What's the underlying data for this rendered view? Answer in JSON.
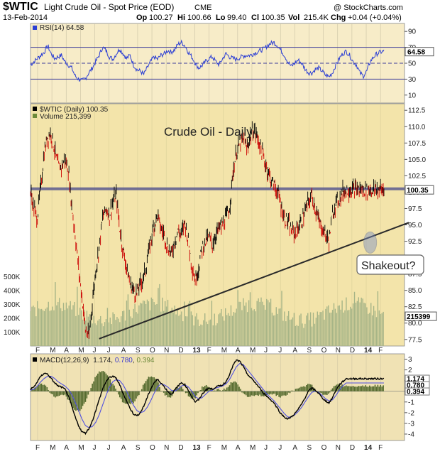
{
  "header": {
    "symbol": "$WTIC",
    "symbol_name": "Light Crude Oil - Spot Price (EOD)",
    "exchange": "CME",
    "watermark": "@ StockCharts.com",
    "date": "13-Feb-2014",
    "op_label": "Op",
    "op": "100.27",
    "hi_label": "Hi",
    "hi": "100.66",
    "lo_label": "Lo",
    "lo": "99.40",
    "cl_label": "Cl",
    "cl": "100.35",
    "vol_label": "Vol",
    "vol": "215.4K",
    "chg_label": "Chg",
    "chg": "+0.04 (+0.04%)"
  },
  "colors": {
    "panel_bg": "#f7ecc8",
    "price_bg": "#f3e4aa",
    "macd_bg": "#f0e2b4",
    "rsi_line": "#2b3ed4",
    "price_up": "#000000",
    "price_down": "#cc0000",
    "volume": "#a6b487",
    "macd_line": "#000000",
    "signal_line": "#5050e0",
    "histogram": "#556b2f",
    "resistance": "#5b5b90",
    "trendline": "#2a2a2a"
  },
  "months": [
    "F",
    "M",
    "A",
    "M",
    "J",
    "J",
    "A",
    "S",
    "O",
    "N",
    "D",
    "13",
    "F",
    "M",
    "A",
    "M",
    "J",
    "J",
    "A",
    "S",
    "O",
    "N",
    "D",
    "14",
    "F"
  ],
  "chart_data": [
    {
      "type": "line",
      "name": "RSI panel",
      "label": "RSI(14) 64.58",
      "last_value_tag": "64.58",
      "y_ticks": [
        90,
        70,
        50,
        30,
        10
      ],
      "reference_lines": [
        70,
        50,
        30
      ],
      "ylim": [
        0,
        100
      ],
      "x": [
        0,
        5,
        10,
        15,
        20,
        25,
        30,
        35,
        40,
        45,
        50,
        55,
        60,
        65,
        70,
        75,
        80,
        85,
        90,
        95,
        100,
        105,
        110,
        115,
        120,
        125,
        130,
        135,
        140,
        145,
        150,
        155,
        160,
        165,
        170,
        175,
        180,
        185,
        190,
        195,
        200,
        205,
        210,
        215,
        220,
        225,
        230,
        235,
        240,
        245,
        250,
        255,
        260,
        265,
        270,
        275,
        280,
        285,
        290,
        295,
        300,
        305,
        310,
        315,
        320,
        325,
        330,
        335,
        340,
        345,
        350,
        355,
        360,
        365,
        370,
        375,
        380,
        385,
        390,
        395,
        400,
        405,
        410,
        415,
        420,
        425,
        430,
        435,
        440,
        445,
        450,
        455,
        460,
        465,
        470,
        475,
        480,
        485,
        490,
        495,
        500,
        505,
        510,
        515
      ],
      "values": [
        48,
        52,
        56,
        60,
        64,
        72,
        62,
        56,
        58,
        60,
        52,
        48,
        44,
        34,
        30,
        28,
        31,
        38,
        44,
        52,
        60,
        70,
        66,
        58,
        55,
        62,
        68,
        62,
        56,
        60,
        48,
        42,
        40,
        36,
        44,
        52,
        58,
        55,
        60,
        62,
        66,
        64,
        67,
        74,
        76,
        72,
        64,
        58,
        50,
        44,
        47,
        52,
        56,
        58,
        52,
        48,
        56,
        62,
        58,
        56,
        55,
        57,
        59,
        60,
        60,
        62,
        64,
        66,
        68,
        72,
        75,
        76,
        72,
        66,
        60,
        52,
        46,
        50,
        54,
        50,
        43,
        38,
        38,
        42,
        44,
        40,
        35,
        33,
        38,
        48,
        56,
        62,
        65,
        60,
        52,
        48,
        38,
        34,
        40,
        52,
        58,
        62,
        64,
        65
      ]
    },
    {
      "type": "line",
      "name": "Price panel",
      "label": "$WTIC (Daily) 100.35",
      "volume_label": "Volume 215,399",
      "title": "Crude Oil - Daily",
      "last_value_tag": "100.35",
      "y_ticks": [
        112.5,
        110.0,
        107.5,
        105.0,
        102.5,
        100.0,
        97.5,
        95.0,
        92.5,
        90.0,
        87.5,
        85.0,
        82.5,
        80.0,
        77.5
      ],
      "ylim": [
        76.5,
        113.5
      ],
      "resistance_level": 100.5,
      "trendline": {
        "from": [
          100,
          77.6
        ],
        "to": [
          515,
          94.3
        ]
      },
      "callout": "Shakeout?",
      "shakeout_point": {
        "x": 495,
        "y": 92.3
      },
      "x": [
        0,
        5,
        10,
        15,
        20,
        25,
        30,
        35,
        40,
        45,
        50,
        55,
        60,
        65,
        70,
        75,
        80,
        85,
        90,
        95,
        100,
        105,
        110,
        115,
        120,
        125,
        130,
        135,
        140,
        145,
        150,
        155,
        160,
        165,
        170,
        175,
        180,
        185,
        190,
        195,
        200,
        205,
        210,
        215,
        220,
        225,
        230,
        235,
        240,
        245,
        250,
        255,
        260,
        265,
        270,
        275,
        280,
        285,
        290,
        295,
        300,
        305,
        310,
        315,
        320,
        325,
        330,
        335,
        340,
        345,
        350,
        355,
        360,
        365,
        370,
        375,
        380,
        385,
        390,
        395,
        400,
        405,
        410,
        415,
        420,
        425,
        430,
        435,
        440,
        445,
        450,
        455,
        460,
        465,
        470,
        475,
        480,
        485,
        490,
        495,
        500,
        505,
        510,
        515
      ],
      "values": [
        100.0,
        97.5,
        96.0,
        101.0,
        106.0,
        108.5,
        109.0,
        106.5,
        104.0,
        103.8,
        105.0,
        103.5,
        98.0,
        93.5,
        88.5,
        84.0,
        79.0,
        77.8,
        83.0,
        88.0,
        91.5,
        96.0,
        97.5,
        96.5,
        98.5,
        99.5,
        94.5,
        91.0,
        88.5,
        86.0,
        85.0,
        84.5,
        86.0,
        87.0,
        89.5,
        92.5,
        95.0,
        96.5,
        94.5,
        93.5,
        91.5,
        90.5,
        92.5,
        94.0,
        93.5,
        95.5,
        92.5,
        89.0,
        86.5,
        88.5,
        91.5,
        92.5,
        93.0,
        92.0,
        93.5,
        94.5,
        95.0,
        96.0,
        97.5,
        103.0,
        106.0,
        107.5,
        108.0,
        106.5,
        108.5,
        109.5,
        108.5,
        107.0,
        105.0,
        103.5,
        102.0,
        101.0,
        100.0,
        98.0,
        96.0,
        95.5,
        94.0,
        93.8,
        94.5,
        95.5,
        97.0,
        98.5,
        99.5,
        97.5,
        95.5,
        94.5,
        93.5,
        92.5,
        96.5,
        98.5,
        99.0,
        100.0,
        100.35,
        100.35,
        100.35,
        100.35,
        100.35,
        100.35,
        100.35,
        100.35,
        100.35,
        100.35,
        100.35,
        100.35
      ]
    },
    {
      "type": "bar",
      "name": "Volume",
      "y_ticks": [
        "500K",
        "400K",
        "300K",
        "200K",
        "100K"
      ],
      "last_value_tag": "215399",
      "ylim": [
        0,
        550000
      ]
    },
    {
      "type": "line",
      "name": "MACD panel",
      "label": "MACD(12,26,9) 1.174, 0.780, 0.394",
      "label_macd": "MACD(12,26,9)",
      "label_v1": "1.174",
      "label_v2": "0.780",
      "label_v3": "0.394",
      "y_ticks": [
        3,
        2,
        1,
        0,
        -1,
        -2,
        -3,
        -4
      ],
      "ylim": [
        -4.6,
        3.5
      ],
      "tags": [
        "1.174",
        "0.780",
        "0.394"
      ],
      "x": [
        0,
        5,
        10,
        15,
        20,
        25,
        30,
        35,
        40,
        45,
        50,
        55,
        60,
        65,
        70,
        75,
        80,
        85,
        90,
        95,
        100,
        105,
        110,
        115,
        120,
        125,
        130,
        135,
        140,
        145,
        150,
        155,
        160,
        165,
        170,
        175,
        180,
        185,
        190,
        195,
        200,
        205,
        210,
        215,
        220,
        225,
        230,
        235,
        240,
        245,
        250,
        255,
        260,
        265,
        270,
        275,
        280,
        285,
        290,
        295,
        300,
        305,
        310,
        315,
        320,
        325,
        330,
        335,
        340,
        345,
        350,
        355,
        360,
        365,
        370,
        375,
        380,
        385,
        390,
        395,
        400,
        405,
        410,
        415,
        420,
        425,
        430,
        435,
        440,
        445,
        450,
        455,
        460,
        465,
        470,
        475,
        480,
        485,
        490,
        495,
        500,
        505,
        510,
        515
      ],
      "values": [
        0.2,
        0.4,
        0.9,
        1.4,
        1.7,
        1.6,
        1.2,
        0.8,
        0.5,
        0.4,
        0.2,
        -0.4,
        -1.4,
        -2.4,
        -3.2,
        -3.8,
        -3.9,
        -3.5,
        -2.8,
        -1.8,
        -0.8,
        0.2,
        0.9,
        1.3,
        1.4,
        1.2,
        0.6,
        -0.2,
        -0.9,
        -1.6,
        -2.1,
        -2.3,
        -2.0,
        -1.4,
        -0.6,
        0.2,
        0.8,
        1.1,
        0.8,
        0.4,
        0.0,
        -0.3,
        0.1,
        0.5,
        0.8,
        0.6,
        0.1,
        -0.5,
        -1.0,
        -0.8,
        -0.3,
        0.1,
        0.3,
        0.2,
        0.4,
        0.5,
        0.6,
        0.9,
        1.6,
        2.4,
        2.9,
        2.8,
        2.3,
        1.7,
        1.3,
        1.0,
        0.6,
        0.2,
        -0.2,
        -0.5,
        -0.8,
        -1.1,
        -1.6,
        -2.1,
        -2.4,
        -2.6,
        -2.4,
        -2.1,
        -1.7,
        -1.2,
        -0.6,
        0.0,
        0.3,
        0.1,
        -0.2,
        -0.6,
        -0.9,
        -1.1,
        -0.6,
        0.1,
        0.6,
        0.9,
        1.174,
        1.174,
        1.174,
        1.174,
        1.174,
        1.174,
        1.174,
        1.174,
        1.174,
        1.174,
        1.174,
        1.174
      ],
      "signal": [
        0.1,
        0.2,
        0.5,
        0.9,
        1.2,
        1.4,
        1.4,
        1.2,
        0.9,
        0.7,
        0.5,
        0.2,
        -0.3,
        -1.0,
        -1.8,
        -2.6,
        -3.2,
        -3.4,
        -3.3,
        -2.9,
        -2.2,
        -1.3,
        -0.4,
        0.4,
        0.9,
        1.1,
        1.0,
        0.6,
        0.0,
        -0.7,
        -1.3,
        -1.8,
        -2.0,
        -1.9,
        -1.5,
        -0.9,
        -0.2,
        0.4,
        0.7,
        0.6,
        0.4,
        0.1,
        0.0,
        0.2,
        0.5,
        0.6,
        0.4,
        0.0,
        -0.5,
        -0.7,
        -0.6,
        -0.3,
        0.0,
        0.1,
        0.3,
        0.4,
        0.5,
        0.7,
        1.1,
        1.7,
        2.3,
        2.6,
        2.5,
        2.1,
        1.7,
        1.3,
        0.9,
        0.5,
        0.1,
        -0.3,
        -0.6,
        -0.9,
        -1.3,
        -1.7,
        -2.1,
        -2.4,
        -2.4,
        -2.2,
        -1.9,
        -1.5,
        -1.0,
        -0.5,
        -0.1,
        0.0,
        -0.1,
        -0.4,
        -0.7,
        -0.9,
        -0.8,
        -0.4,
        0.1,
        0.5,
        0.78,
        0.78,
        0.78,
        0.78,
        0.78,
        0.78,
        0.78,
        0.78,
        0.78,
        0.78,
        0.78,
        0.78
      ]
    }
  ]
}
